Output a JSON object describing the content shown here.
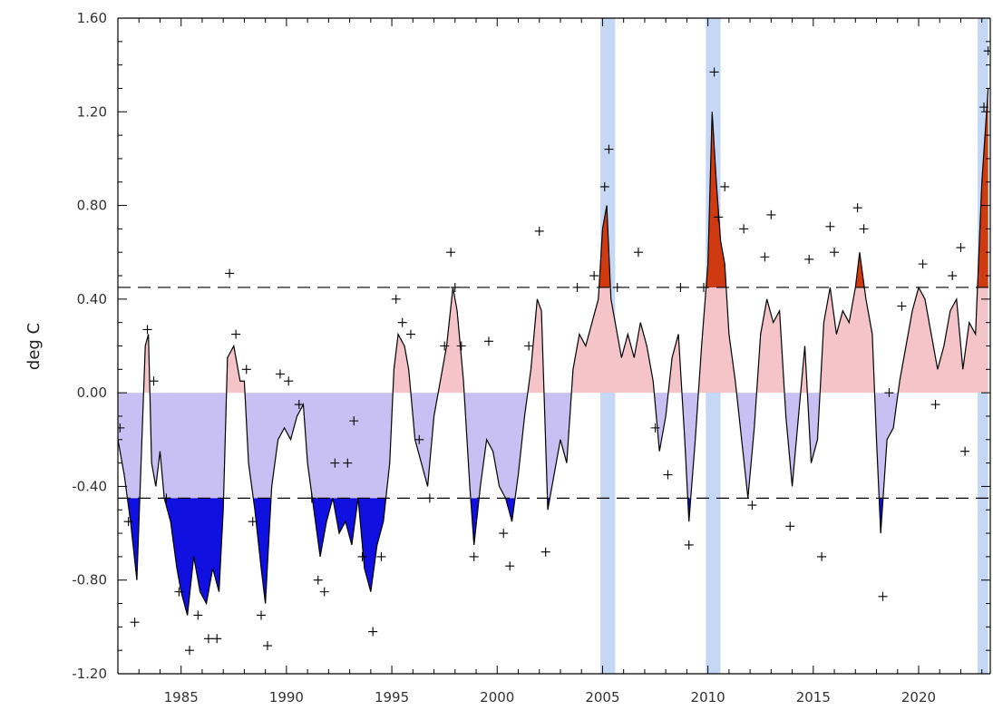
{
  "chart_data": {
    "type": "area",
    "title": "",
    "xlabel": "",
    "ylabel": "deg C",
    "xlim": [
      1982.0,
      2023.4
    ],
    "ylim": [
      -1.2,
      1.6
    ],
    "x_ticks": [
      1985,
      1990,
      1995,
      2000,
      2005,
      2010,
      2015,
      2020
    ],
    "x_tick_labels": [
      "1985",
      "1990",
      "1995",
      "2000",
      "2005",
      "2010",
      "2015",
      "2020"
    ],
    "y_ticks": [
      -1.2,
      -0.8,
      -0.4,
      0.0,
      0.4,
      0.8,
      1.2,
      1.6
    ],
    "y_tick_labels": [
      "-1.20",
      "-0.80",
      "-0.40",
      "0.00",
      "0.40",
      "0.80",
      "1.20",
      "1.60"
    ],
    "thresholds": [
      0.45,
      -0.45
    ],
    "highlight_periods": [
      [
        2004.9,
        2005.6
      ],
      [
        2009.9,
        2010.6
      ],
      [
        2022.8,
        2023.3
      ]
    ],
    "colors": {
      "positive_fill": "#f4c4c8",
      "negative_fill": "#c8c0f2",
      "strong_positive_fill": "#d03a10",
      "strong_negative_fill": "#1010e0",
      "highlight": "#c4d8f6",
      "line": "#000000"
    },
    "series": [
      {
        "values": [
          [
            1982.0,
            -0.2
          ],
          [
            1982.3,
            -0.35
          ],
          [
            1982.6,
            -0.55
          ],
          [
            1982.9,
            -0.8
          ],
          [
            1983.1,
            -0.3
          ],
          [
            1983.3,
            0.2
          ],
          [
            1983.45,
            0.25
          ],
          [
            1983.6,
            -0.3
          ],
          [
            1983.8,
            -0.4
          ],
          [
            1984.0,
            -0.25
          ],
          [
            1984.2,
            -0.45
          ],
          [
            1984.5,
            -0.55
          ],
          [
            1984.8,
            -0.75
          ],
          [
            1985.0,
            -0.85
          ],
          [
            1985.3,
            -0.95
          ],
          [
            1985.6,
            -0.7
          ],
          [
            1985.9,
            -0.85
          ],
          [
            1986.2,
            -0.9
          ],
          [
            1986.5,
            -0.75
          ],
          [
            1986.8,
            -0.85
          ],
          [
            1987.0,
            -0.5
          ],
          [
            1987.2,
            0.15
          ],
          [
            1987.5,
            0.2
          ],
          [
            1987.8,
            0.05
          ],
          [
            1988.0,
            0.05
          ],
          [
            1988.2,
            -0.3
          ],
          [
            1988.5,
            -0.5
          ],
          [
            1988.8,
            -0.75
          ],
          [
            1989.0,
            -0.9
          ],
          [
            1989.3,
            -0.4
          ],
          [
            1989.6,
            -0.2
          ],
          [
            1989.9,
            -0.15
          ],
          [
            1990.2,
            -0.2
          ],
          [
            1990.5,
            -0.1
          ],
          [
            1990.8,
            -0.05
          ],
          [
            1991.0,
            -0.3
          ],
          [
            1991.3,
            -0.5
          ],
          [
            1991.6,
            -0.7
          ],
          [
            1991.9,
            -0.55
          ],
          [
            1992.2,
            -0.45
          ],
          [
            1992.5,
            -0.6
          ],
          [
            1992.8,
            -0.55
          ],
          [
            1993.1,
            -0.65
          ],
          [
            1993.4,
            -0.45
          ],
          [
            1993.7,
            -0.75
          ],
          [
            1994.0,
            -0.85
          ],
          [
            1994.3,
            -0.65
          ],
          [
            1994.6,
            -0.55
          ],
          [
            1994.9,
            -0.3
          ],
          [
            1995.1,
            0.1
          ],
          [
            1995.3,
            0.25
          ],
          [
            1995.6,
            0.2
          ],
          [
            1995.8,
            0.1
          ],
          [
            1996.1,
            -0.2
          ],
          [
            1996.4,
            -0.3
          ],
          [
            1996.7,
            -0.4
          ],
          [
            1997.0,
            -0.1
          ],
          [
            1997.3,
            0.05
          ],
          [
            1997.6,
            0.2
          ],
          [
            1997.9,
            0.45
          ],
          [
            1998.1,
            0.35
          ],
          [
            1998.4,
            0.05
          ],
          [
            1998.7,
            -0.4
          ],
          [
            1998.9,
            -0.65
          ],
          [
            1999.2,
            -0.4
          ],
          [
            1999.5,
            -0.2
          ],
          [
            1999.8,
            -0.25
          ],
          [
            2000.1,
            -0.4
          ],
          [
            2000.4,
            -0.45
          ],
          [
            2000.7,
            -0.55
          ],
          [
            2001.0,
            -0.35
          ],
          [
            2001.3,
            -0.1
          ],
          [
            2001.6,
            0.1
          ],
          [
            2001.9,
            0.4
          ],
          [
            2002.1,
            0.35
          ],
          [
            2002.4,
            -0.5
          ],
          [
            2002.7,
            -0.35
          ],
          [
            2003.0,
            -0.2
          ],
          [
            2003.3,
            -0.3
          ],
          [
            2003.6,
            0.1
          ],
          [
            2003.9,
            0.25
          ],
          [
            2004.2,
            0.2
          ],
          [
            2004.5,
            0.3
          ],
          [
            2004.8,
            0.4
          ],
          [
            2005.0,
            0.7
          ],
          [
            2005.2,
            0.8
          ],
          [
            2005.4,
            0.4
          ],
          [
            2005.6,
            0.3
          ],
          [
            2005.9,
            0.15
          ],
          [
            2006.2,
            0.25
          ],
          [
            2006.5,
            0.15
          ],
          [
            2006.8,
            0.3
          ],
          [
            2007.1,
            0.2
          ],
          [
            2007.4,
            0.05
          ],
          [
            2007.7,
            -0.25
          ],
          [
            2008.0,
            -0.1
          ],
          [
            2008.3,
            0.15
          ],
          [
            2008.6,
            0.25
          ],
          [
            2008.9,
            -0.2
          ],
          [
            2009.1,
            -0.55
          ],
          [
            2009.4,
            -0.2
          ],
          [
            2009.7,
            0.2
          ],
          [
            2010.0,
            0.55
          ],
          [
            2010.2,
            1.2
          ],
          [
            2010.4,
            0.9
          ],
          [
            2010.6,
            0.65
          ],
          [
            2010.8,
            0.55
          ],
          [
            2011.0,
            0.25
          ],
          [
            2011.3,
            0.05
          ],
          [
            2011.6,
            -0.2
          ],
          [
            2011.9,
            -0.45
          ],
          [
            2012.2,
            -0.15
          ],
          [
            2012.5,
            0.25
          ],
          [
            2012.8,
            0.4
          ],
          [
            2013.1,
            0.3
          ],
          [
            2013.4,
            0.35
          ],
          [
            2013.7,
            -0.1
          ],
          [
            2014.0,
            -0.4
          ],
          [
            2014.3,
            -0.1
          ],
          [
            2014.6,
            0.2
          ],
          [
            2014.9,
            -0.3
          ],
          [
            2015.2,
            -0.2
          ],
          [
            2015.5,
            0.3
          ],
          [
            2015.8,
            0.45
          ],
          [
            2016.1,
            0.25
          ],
          [
            2016.4,
            0.35
          ],
          [
            2016.7,
            0.3
          ],
          [
            2017.0,
            0.45
          ],
          [
            2017.2,
            0.6
          ],
          [
            2017.5,
            0.4
          ],
          [
            2017.8,
            0.25
          ],
          [
            2018.0,
            -0.2
          ],
          [
            2018.2,
            -0.6
          ],
          [
            2018.5,
            -0.2
          ],
          [
            2018.8,
            -0.15
          ],
          [
            2019.1,
            0.05
          ],
          [
            2019.4,
            0.2
          ],
          [
            2019.7,
            0.35
          ],
          [
            2020.0,
            0.45
          ],
          [
            2020.3,
            0.4
          ],
          [
            2020.6,
            0.25
          ],
          [
            2020.9,
            0.1
          ],
          [
            2021.2,
            0.2
          ],
          [
            2021.5,
            0.35
          ],
          [
            2021.8,
            0.4
          ],
          [
            2022.1,
            0.1
          ],
          [
            2022.4,
            0.3
          ],
          [
            2022.7,
            0.25
          ],
          [
            2023.0,
            0.9
          ],
          [
            2023.3,
            1.3
          ]
        ]
      }
    ],
    "monthly_points": [
      [
        1982.1,
        -0.15
      ],
      [
        1982.5,
        -0.55
      ],
      [
        1982.8,
        -0.98
      ],
      [
        1983.4,
        0.27
      ],
      [
        1983.7,
        0.05
      ],
      [
        1984.3,
        -0.45
      ],
      [
        1984.9,
        -0.85
      ],
      [
        1985.4,
        -1.1
      ],
      [
        1985.8,
        -0.95
      ],
      [
        1986.3,
        -1.05
      ],
      [
        1986.7,
        -1.05
      ],
      [
        1987.3,
        0.51
      ],
      [
        1987.6,
        0.25
      ],
      [
        1988.1,
        0.1
      ],
      [
        1988.4,
        -0.55
      ],
      [
        1988.8,
        -0.95
      ],
      [
        1989.1,
        -1.08
      ],
      [
        1989.7,
        0.08
      ],
      [
        1990.1,
        0.05
      ],
      [
        1990.6,
        -0.05
      ],
      [
        1991.2,
        -0.45
      ],
      [
        1991.5,
        -0.8
      ],
      [
        1991.8,
        -0.85
      ],
      [
        1992.3,
        -0.3
      ],
      [
        1992.9,
        -0.3
      ],
      [
        1993.2,
        -0.12
      ],
      [
        1993.6,
        -0.7
      ],
      [
        1994.1,
        -1.02
      ],
      [
        1994.5,
        -0.7
      ],
      [
        1995.2,
        0.4
      ],
      [
        1995.5,
        0.3
      ],
      [
        1995.9,
        0.25
      ],
      [
        1996.3,
        -0.2
      ],
      [
        1996.8,
        -0.45
      ],
      [
        1997.5,
        0.2
      ],
      [
        1997.8,
        0.6
      ],
      [
        1998.0,
        0.45
      ],
      [
        1998.3,
        0.2
      ],
      [
        1998.9,
        -0.7
      ],
      [
        1999.6,
        0.22
      ],
      [
        2000.3,
        -0.6
      ],
      [
        2000.6,
        -0.74
      ],
      [
        2001.5,
        0.2
      ],
      [
        2002.0,
        0.69
      ],
      [
        2002.3,
        -0.68
      ],
      [
        2003.8,
        0.45
      ],
      [
        2004.6,
        0.5
      ],
      [
        2005.1,
        0.88
      ],
      [
        2005.3,
        1.04
      ],
      [
        2005.7,
        0.45
      ],
      [
        2006.7,
        0.6
      ],
      [
        2007.5,
        -0.15
      ],
      [
        2008.1,
        -0.35
      ],
      [
        2008.7,
        0.45
      ],
      [
        2009.1,
        -0.65
      ],
      [
        2009.8,
        0.45
      ],
      [
        2010.3,
        1.37
      ],
      [
        2010.5,
        0.75
      ],
      [
        2010.8,
        0.88
      ],
      [
        2011.7,
        0.7
      ],
      [
        2012.1,
        -0.48
      ],
      [
        2012.7,
        0.58
      ],
      [
        2013.0,
        0.76
      ],
      [
        2013.9,
        -0.57
      ],
      [
        2014.8,
        0.57
      ],
      [
        2015.4,
        -0.7
      ],
      [
        2015.8,
        0.71
      ],
      [
        2016.0,
        0.6
      ],
      [
        2017.1,
        0.79
      ],
      [
        2017.4,
        0.7
      ],
      [
        2018.3,
        -0.87
      ],
      [
        2018.6,
        0.0
      ],
      [
        2019.2,
        0.37
      ],
      [
        2020.2,
        0.55
      ],
      [
        2020.8,
        -0.05
      ],
      [
        2021.6,
        0.5
      ],
      [
        2022.0,
        0.62
      ],
      [
        2022.2,
        -0.25
      ],
      [
        2023.1,
        1.22
      ],
      [
        2023.3,
        1.46
      ]
    ]
  }
}
